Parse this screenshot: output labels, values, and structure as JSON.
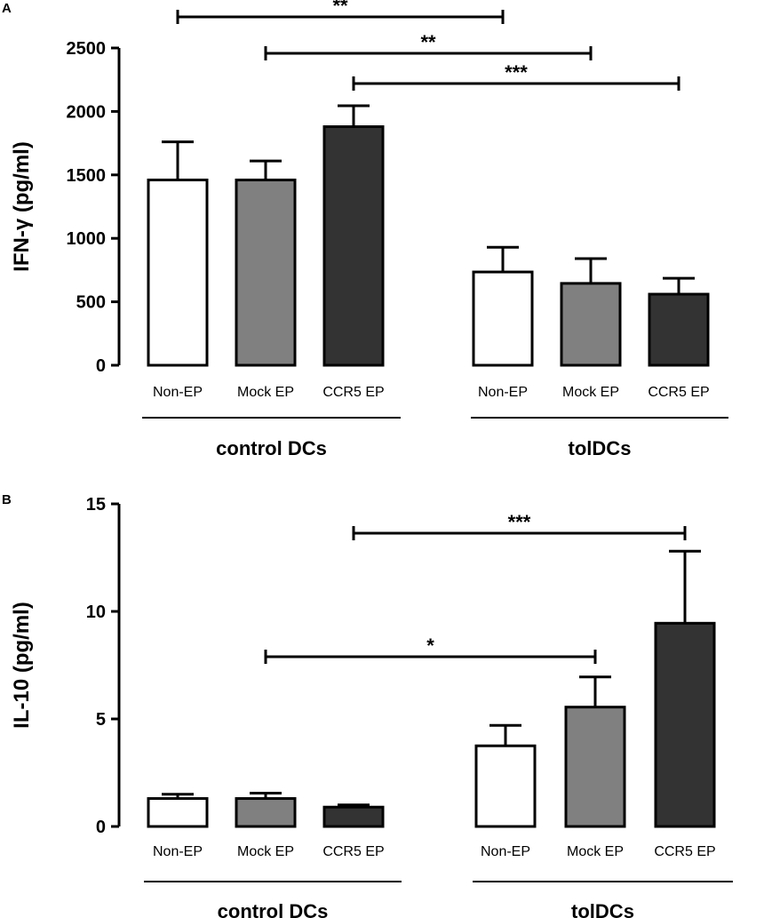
{
  "colors": {
    "Non-EP": "#ffffff",
    "Mock EP": "#808080",
    "CCR5 EP": "#333333",
    "stroke": "#000000"
  },
  "chart_data": [
    {
      "panel": "A",
      "type": "bar",
      "ylabel": "IFN-γ (pg/ml)",
      "ylim": [
        0,
        2500
      ],
      "yticks": [
        0,
        500,
        1000,
        1500,
        2000,
        2500
      ],
      "groups": [
        {
          "name": "control DCs",
          "categories": [
            "Non-EP",
            "Mock EP",
            "CCR5 EP"
          ],
          "values": [
            1460,
            1460,
            1880
          ],
          "errors": [
            300,
            150,
            165
          ]
        },
        {
          "name": "tolDCs",
          "categories": [
            "Non-EP",
            "Mock EP",
            "CCR5 EP"
          ],
          "values": [
            735,
            645,
            560
          ],
          "errors": [
            195,
            195,
            125
          ]
        }
      ],
      "significance": [
        {
          "from": [
            0,
            0
          ],
          "to": [
            1,
            0
          ],
          "label": "**"
        },
        {
          "from": [
            0,
            1
          ],
          "to": [
            1,
            1
          ],
          "label": "**"
        },
        {
          "from": [
            0,
            2
          ],
          "to": [
            1,
            2
          ],
          "label": "***"
        }
      ]
    },
    {
      "panel": "B",
      "type": "bar",
      "ylabel": "IL-10 (pg/ml)",
      "ylim": [
        0,
        15
      ],
      "yticks": [
        0,
        5,
        10,
        15
      ],
      "groups": [
        {
          "name": "control DCs",
          "categories": [
            "Non-EP",
            "Mock EP",
            "CCR5 EP"
          ],
          "values": [
            1.3,
            1.3,
            0.9
          ],
          "errors": [
            0.2,
            0.25,
            0.1
          ]
        },
        {
          "name": "tolDCs",
          "categories": [
            "Non-EP",
            "Mock EP",
            "CCR5 EP"
          ],
          "values": [
            3.75,
            5.55,
            9.45
          ],
          "errors": [
            0.95,
            1.4,
            3.35
          ]
        }
      ],
      "significance": [
        {
          "from": [
            0,
            1
          ],
          "to": [
            1,
            1
          ],
          "label": "*"
        },
        {
          "from": [
            0,
            2
          ],
          "to": [
            1,
            2
          ],
          "label": "***"
        }
      ]
    }
  ]
}
